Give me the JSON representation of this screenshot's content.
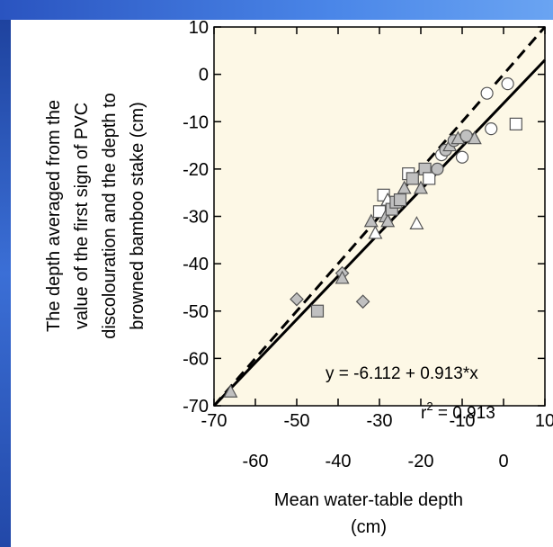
{
  "colors": {
    "frame_blue": "#3b6fd6",
    "plot_background": "#fdf8e6",
    "marker_fill_gray": "#c0c0c0",
    "marker_stroke": "#555555"
  },
  "chart_data": {
    "type": "scatter",
    "title": "",
    "xlabel_lines": [
      "Mean water-table depth",
      "(cm)"
    ],
    "ylabel_lines": [
      "The depth averaged from the",
      "value of the first sign of PVC",
      "discolouration and the depth to",
      "browned bamboo stake (cm)"
    ],
    "xlim": [
      -70,
      10
    ],
    "ylim": [
      -70,
      10
    ],
    "x_ticks_upper": [
      "-70",
      "-50",
      "-30",
      "-10",
      "10"
    ],
    "x_ticks_lower": [
      "-60",
      "-40",
      "-20",
      "0"
    ],
    "y_ticks": [
      "10",
      "0",
      "-10",
      "-20",
      "-30",
      "-40",
      "-50",
      "-60",
      "-70"
    ],
    "grid": false,
    "fit_line": {
      "intercept": -6.112,
      "slope": 0.913,
      "style": "solid"
    },
    "one_to_one_line": {
      "style": "dashed"
    },
    "annotations": {
      "equation": "y = -6.112 + 0.913*x",
      "r2_prefix": "r",
      "r2_sup": "2",
      "r2_value": " = 0.913"
    },
    "points": [
      {
        "x": -66,
        "y": -67,
        "marker": "triangle",
        "fill": "gray"
      },
      {
        "x": -50,
        "y": -47.5,
        "marker": "diamond",
        "fill": "gray"
      },
      {
        "x": -45,
        "y": -50,
        "marker": "square",
        "fill": "gray"
      },
      {
        "x": -39,
        "y": -42,
        "marker": "diamond",
        "fill": "gray"
      },
      {
        "x": -39,
        "y": -43,
        "marker": "triangle",
        "fill": "gray"
      },
      {
        "x": -34,
        "y": -48,
        "marker": "diamond",
        "fill": "gray"
      },
      {
        "x": -32,
        "y": -31,
        "marker": "triangle",
        "fill": "gray"
      },
      {
        "x": -31,
        "y": -33.5,
        "marker": "triangle",
        "fill": "open"
      },
      {
        "x": -30,
        "y": -29,
        "marker": "square",
        "fill": "open"
      },
      {
        "x": -29,
        "y": -25.5,
        "marker": "square",
        "fill": "open"
      },
      {
        "x": -28.5,
        "y": -30,
        "marker": "triangle",
        "fill": "gray"
      },
      {
        "x": -28,
        "y": -31,
        "marker": "triangle",
        "fill": "gray"
      },
      {
        "x": -28,
        "y": -26.5,
        "marker": "triangle",
        "fill": "open"
      },
      {
        "x": -27,
        "y": -28.5,
        "marker": "square",
        "fill": "gray"
      },
      {
        "x": -26,
        "y": -27,
        "marker": "square",
        "fill": "gray"
      },
      {
        "x": -25,
        "y": -26.5,
        "marker": "square",
        "fill": "gray"
      },
      {
        "x": -24,
        "y": -24,
        "marker": "triangle",
        "fill": "gray"
      },
      {
        "x": -23,
        "y": -21,
        "marker": "square",
        "fill": "open"
      },
      {
        "x": -22,
        "y": -22,
        "marker": "square",
        "fill": "gray"
      },
      {
        "x": -21,
        "y": -31.5,
        "marker": "triangle",
        "fill": "open"
      },
      {
        "x": -20,
        "y": -24,
        "marker": "triangle",
        "fill": "gray"
      },
      {
        "x": -19,
        "y": -20,
        "marker": "square",
        "fill": "gray"
      },
      {
        "x": -18,
        "y": -22,
        "marker": "square",
        "fill": "open"
      },
      {
        "x": -16,
        "y": -20,
        "marker": "circle",
        "fill": "gray"
      },
      {
        "x": -15,
        "y": -17,
        "marker": "circle",
        "fill": "open"
      },
      {
        "x": -14,
        "y": -16,
        "marker": "circle",
        "fill": "gray"
      },
      {
        "x": -13,
        "y": -15,
        "marker": "triangle",
        "fill": "gray"
      },
      {
        "x": -12,
        "y": -14,
        "marker": "circle",
        "fill": "gray"
      },
      {
        "x": -11,
        "y": -13.5,
        "marker": "triangle",
        "fill": "gray"
      },
      {
        "x": -10,
        "y": -17.5,
        "marker": "circle",
        "fill": "open"
      },
      {
        "x": -9,
        "y": -13,
        "marker": "circle",
        "fill": "gray"
      },
      {
        "x": -7,
        "y": -13.5,
        "marker": "triangle",
        "fill": "gray"
      },
      {
        "x": -4,
        "y": -4,
        "marker": "circle",
        "fill": "open"
      },
      {
        "x": -3,
        "y": -11.5,
        "marker": "circle",
        "fill": "open"
      },
      {
        "x": 1,
        "y": -2,
        "marker": "circle",
        "fill": "open"
      },
      {
        "x": 3,
        "y": -10.5,
        "marker": "square",
        "fill": "open"
      }
    ]
  }
}
